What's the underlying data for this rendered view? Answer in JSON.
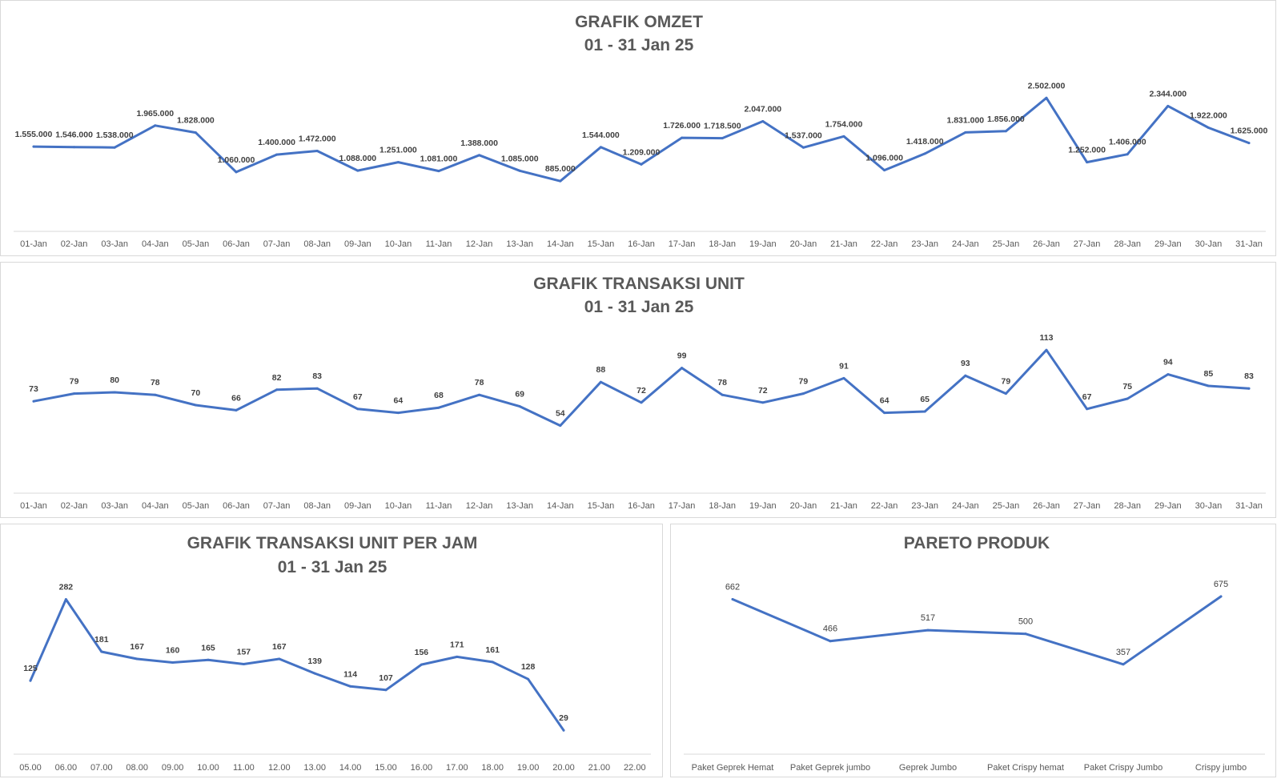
{
  "colors": {
    "line": "#4472C4",
    "axis": "#d9d9d9",
    "title": "#595959",
    "label": "#404040"
  },
  "chart_data": [
    {
      "type": "line",
      "title": "GRAFIK OMZET",
      "subtitle": "01 - 31 Jan 25",
      "label_style": "bold",
      "ylim": [
        0,
        2600000
      ],
      "grid": false,
      "categories": [
        "01-Jan",
        "02-Jan",
        "03-Jan",
        "04-Jan",
        "05-Jan",
        "06-Jan",
        "07-Jan",
        "08-Jan",
        "09-Jan",
        "10-Jan",
        "11-Jan",
        "12-Jan",
        "13-Jan",
        "14-Jan",
        "15-Jan",
        "16-Jan",
        "17-Jan",
        "18-Jan",
        "19-Jan",
        "20-Jan",
        "21-Jan",
        "22-Jan",
        "23-Jan",
        "24-Jan",
        "25-Jan",
        "26-Jan",
        "27-Jan",
        "28-Jan",
        "29-Jan",
        "30-Jan",
        "31-Jan"
      ],
      "values": [
        1555000,
        1546000,
        1538000,
        1965000,
        1828000,
        1060000,
        1400000,
        1472000,
        1088000,
        1251000,
        1081000,
        1388000,
        1085000,
        885000,
        1544000,
        1209000,
        1726000,
        1718500,
        2047000,
        1537000,
        1754000,
        1096000,
        1418000,
        1831000,
        1856000,
        2502000,
        1252000,
        1406000,
        2344000,
        1922000,
        1625000
      ],
      "data_labels": [
        "1.555.000",
        "1.546.000",
        "1.538.000",
        "1.965.000",
        "1.828.000",
        "1.060.000",
        "1.400.000",
        "1.472.000",
        "1.088.000",
        "1.251.000",
        "1.081.000",
        "1.388.000",
        "1.085.000",
        "885.000",
        "1.544.000",
        "1.209.000",
        "1.726.000",
        "1.718.500",
        "2.047.000",
        "1.537.000",
        "1.754.000",
        "1.096.000",
        "1.418.000",
        "1.831.000",
        "1.856.000",
        "2.502.000",
        "1.252.000",
        "1.406.000",
        "2.344.000",
        "1.922.000",
        "1.625.000"
      ]
    },
    {
      "type": "line",
      "title": "GRAFIK TRANSAKSI UNIT",
      "subtitle": "01 - 31 Jan 25",
      "label_style": "bold",
      "ylim": [
        0,
        120
      ],
      "grid": false,
      "categories": [
        "01-Jan",
        "02-Jan",
        "03-Jan",
        "04-Jan",
        "05-Jan",
        "06-Jan",
        "07-Jan",
        "08-Jan",
        "09-Jan",
        "10-Jan",
        "11-Jan",
        "12-Jan",
        "13-Jan",
        "14-Jan",
        "15-Jan",
        "16-Jan",
        "17-Jan",
        "18-Jan",
        "19-Jan",
        "20-Jan",
        "21-Jan",
        "22-Jan",
        "23-Jan",
        "24-Jan",
        "25-Jan",
        "26-Jan",
        "27-Jan",
        "28-Jan",
        "29-Jan",
        "30-Jan",
        "31-Jan"
      ],
      "values": [
        73,
        79,
        80,
        78,
        70,
        66,
        82,
        83,
        67,
        64,
        68,
        78,
        69,
        54,
        88,
        72,
        99,
        78,
        72,
        79,
        91,
        64,
        65,
        93,
        79,
        113,
        67,
        75,
        94,
        85,
        83
      ],
      "data_labels": [
        "73",
        "79",
        "80",
        "78",
        "70",
        "66",
        "82",
        "83",
        "67",
        "64",
        "68",
        "78",
        "69",
        "54",
        "88",
        "72",
        "99",
        "78",
        "72",
        "79",
        "91",
        "64",
        "65",
        "93",
        "79",
        "113",
        "67",
        "75",
        "94",
        "85",
        "83"
      ]
    },
    {
      "type": "line",
      "title": "GRAFIK TRANSAKSI UNIT PER JAM",
      "subtitle": "01 - 31 Jan 25",
      "label_style": "bold",
      "ylim": [
        0,
        300
      ],
      "grid": false,
      "categories": [
        "05.00",
        "06.00",
        "07.00",
        "08.00",
        "09.00",
        "10.00",
        "11.00",
        "12.00",
        "13.00",
        "14.00",
        "15.00",
        "16.00",
        "17.00",
        "18.00",
        "19.00",
        "20.00",
        "21.00",
        "22.00"
      ],
      "values": [
        125,
        282,
        181,
        167,
        160,
        165,
        157,
        167,
        139,
        114,
        107,
        156,
        171,
        161,
        128,
        29,
        null,
        null
      ],
      "data_labels": [
        "125",
        "282",
        "181",
        "167",
        "160",
        "165",
        "157",
        "167",
        "139",
        "114",
        "107",
        "156",
        "171",
        "161",
        "128",
        "29",
        "",
        ""
      ]
    },
    {
      "type": "line",
      "title": "PARETO PRODUK",
      "subtitle": "",
      "label_style": "normal",
      "ylim": [
        0,
        750
      ],
      "grid": false,
      "categories": [
        "Paket Geprek Hemat",
        "Paket Geprek jumbo",
        "Geprek Jumbo",
        "Paket Crispy hemat",
        "Paket Crispy Jumbo",
        "Crispy jumbo"
      ],
      "values": [
        662,
        466,
        517,
        500,
        357,
        675
      ],
      "data_labels": [
        "662",
        "466",
        "517",
        "500",
        "357",
        "675"
      ]
    }
  ]
}
